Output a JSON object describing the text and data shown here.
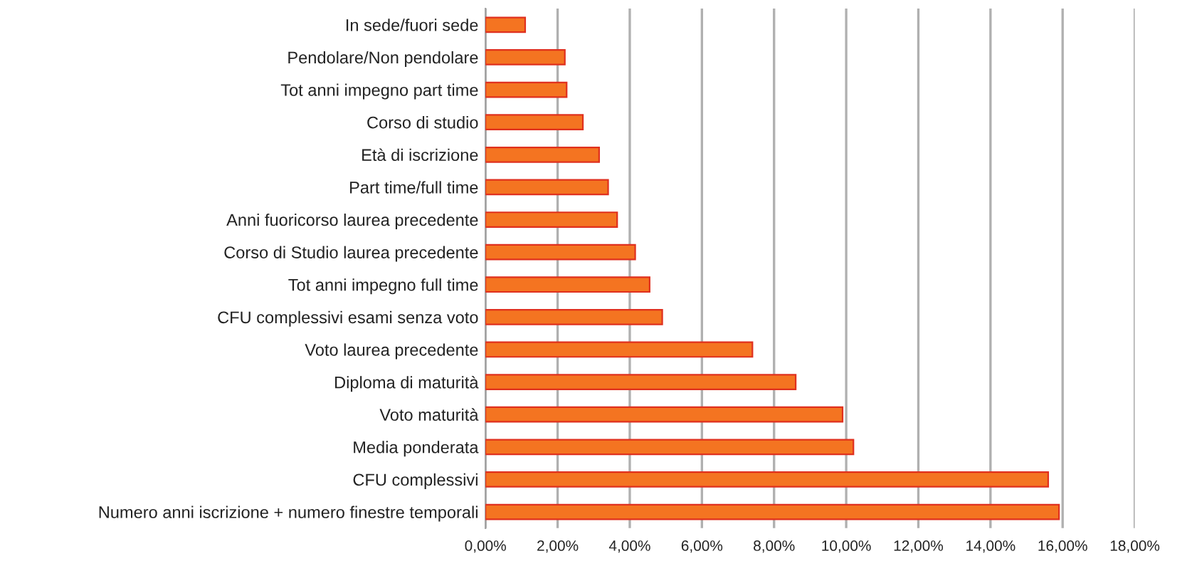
{
  "chart_data": {
    "type": "bar",
    "orientation": "horizontal",
    "categories": [
      "In sede/fuori sede",
      "Pendolare/Non pendolare",
      "Tot anni impegno part time",
      "Corso di studio",
      "Età di iscrizione",
      "Part time/full time",
      "Anni fuoricorso laurea precedente",
      "Corso di Studio laurea precedente",
      "Tot anni impegno full time",
      "CFU complessivi esami senza voto",
      "Voto laurea precedente",
      "Diploma di maturità",
      "Voto maturità",
      "Media ponderata",
      "CFU complessivi",
      "Numero anni iscrizione + numero finestre temporali"
    ],
    "values": [
      1.1,
      2.2,
      2.25,
      2.7,
      3.15,
      3.4,
      3.65,
      4.15,
      4.55,
      4.9,
      7.4,
      8.6,
      9.9,
      10.2,
      15.6,
      15.9
    ],
    "color": "#f47421",
    "xlim": [
      0,
      18
    ],
    "xticks": [
      {
        "value": 0,
        "label": "0,00%"
      },
      {
        "value": 2,
        "label": "2,00%"
      },
      {
        "value": 4,
        "label": "4,00%"
      },
      {
        "value": 6,
        "label": "6,00%"
      },
      {
        "value": 8,
        "label": "8,00%"
      },
      {
        "value": 10,
        "label": "10,00%"
      },
      {
        "value": 12,
        "label": "12,00%"
      },
      {
        "value": 14,
        "label": "14,00%"
      },
      {
        "value": 16,
        "label": "16,00%"
      },
      {
        "value": 18,
        "label": "18,00%"
      }
    ],
    "grid": "x"
  }
}
